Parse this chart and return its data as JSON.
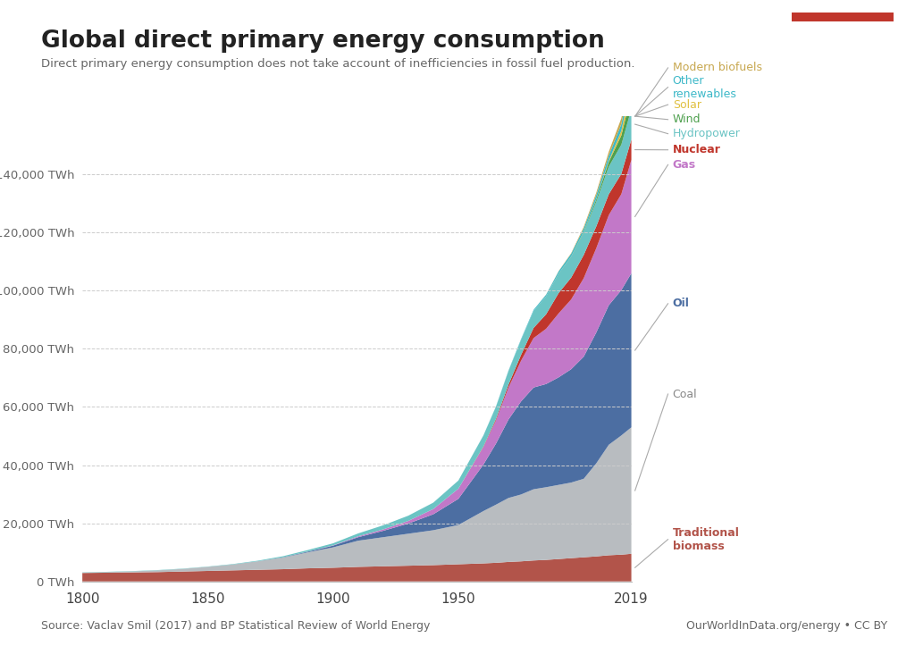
{
  "title": "Global direct primary energy consumption",
  "subtitle": "Direct primary energy consumption does not take account of inefficiencies in fossil fuel production.",
  "source_text": "Source: Vaclav Smil (2017) and BP Statistical Review of World Energy",
  "credit_text": "OurWorldInData.org/energy • CC BY",
  "background_color": "#ffffff",
  "years": [
    1800,
    1810,
    1820,
    1830,
    1840,
    1850,
    1860,
    1870,
    1880,
    1890,
    1900,
    1910,
    1920,
    1930,
    1940,
    1950,
    1960,
    1965,
    1970,
    1975,
    1980,
    1985,
    1990,
    1995,
    2000,
    2005,
    2010,
    2015,
    2019
  ],
  "series": {
    "Traditional biomass": {
      "color": "#b2544a",
      "values": [
        2900,
        3000,
        3100,
        3200,
        3400,
        3600,
        3800,
        4000,
        4200,
        4500,
        4700,
        5000,
        5200,
        5400,
        5600,
        5900,
        6200,
        6400,
        6700,
        6900,
        7200,
        7400,
        7700,
        8000,
        8300,
        8600,
        9000,
        9200,
        9500
      ]
    },
    "Coal": {
      "color": "#b8bcc0",
      "values": [
        100,
        200,
        350,
        600,
        900,
        1400,
        2000,
        2900,
        4000,
        5500,
        7000,
        9000,
        10000,
        11000,
        12000,
        13500,
        18000,
        20000,
        22000,
        23000,
        24500,
        25000,
        25500,
        26000,
        27000,
        32000,
        38000,
        41000,
        43500
      ]
    },
    "Oil": {
      "color": "#4c6ea2",
      "values": [
        0,
        0,
        0,
        0,
        0,
        0,
        10,
        30,
        100,
        250,
        600,
        1200,
        2200,
        3500,
        5500,
        9000,
        16000,
        21000,
        27000,
        32000,
        35000,
        35500,
        37000,
        39000,
        42000,
        45000,
        48000,
        50000,
        53000
      ]
    },
    "Gas": {
      "color": "#c278c8",
      "values": [
        0,
        0,
        0,
        0,
        0,
        0,
        0,
        0,
        0,
        50,
        100,
        300,
        500,
        900,
        1800,
        3500,
        6000,
        8000,
        11000,
        14000,
        17000,
        19000,
        22000,
        24000,
        27000,
        29000,
        31000,
        33000,
        39000
      ]
    },
    "Nuclear": {
      "color": "#c0362c",
      "values": [
        0,
        0,
        0,
        0,
        0,
        0,
        0,
        0,
        0,
        0,
        0,
        0,
        0,
        0,
        0,
        0,
        200,
        500,
        1000,
        2000,
        3500,
        5000,
        7000,
        7500,
        8000,
        7500,
        7200,
        7000,
        7000
      ]
    },
    "Hydropower": {
      "color": "#6bc4c4",
      "values": [
        100,
        100,
        100,
        100,
        100,
        100,
        150,
        200,
        350,
        500,
        700,
        1000,
        1400,
        1800,
        2200,
        2800,
        3800,
        4200,
        4700,
        5200,
        5800,
        6200,
        6700,
        7200,
        7700,
        8500,
        9500,
        10000,
        10500
      ]
    },
    "Wind": {
      "color": "#4ea04e",
      "values": [
        0,
        0,
        0,
        0,
        0,
        0,
        0,
        0,
        0,
        0,
        0,
        0,
        0,
        0,
        0,
        0,
        0,
        0,
        0,
        0,
        0,
        10,
        40,
        100,
        300,
        800,
        1600,
        3200,
        5000
      ]
    },
    "Solar": {
      "color": "#e0c040",
      "values": [
        0,
        0,
        0,
        0,
        0,
        0,
        0,
        0,
        0,
        0,
        0,
        0,
        0,
        0,
        0,
        0,
        0,
        0,
        0,
        0,
        0,
        0,
        5,
        15,
        40,
        100,
        400,
        1600,
        4000
      ]
    },
    "Other renewables": {
      "color": "#3cb8c8",
      "values": [
        0,
        0,
        0,
        0,
        0,
        0,
        0,
        0,
        0,
        0,
        0,
        0,
        0,
        0,
        0,
        0,
        50,
        100,
        150,
        250,
        400,
        500,
        700,
        900,
        1100,
        1400,
        1800,
        2300,
        2900
      ]
    },
    "Modern biofuels": {
      "color": "#c8a850",
      "values": [
        0,
        0,
        0,
        0,
        0,
        0,
        0,
        0,
        0,
        0,
        0,
        0,
        0,
        0,
        0,
        0,
        0,
        0,
        0,
        0,
        0,
        50,
        100,
        200,
        500,
        800,
        1300,
        2000,
        2700
      ]
    }
  },
  "ylim": [
    0,
    160000
  ],
  "yticks": [
    0,
    20000,
    40000,
    60000,
    80000,
    100000,
    120000,
    140000
  ],
  "ytick_labels": [
    "0 TWh",
    "20,000 TWh",
    "40,000 TWh",
    "60,000 TWh",
    "80,000 TWh",
    "100,000 TWh",
    "120,000 TWh",
    "140,000 TWh"
  ],
  "xticks": [
    1800,
    1850,
    1900,
    1950,
    2019
  ],
  "logo_bg": "#1a3a6e",
  "logo_red": "#c0362c",
  "label_names": [
    "Modern biofuels",
    "Other\nrenewables",
    "Solar",
    "Wind",
    "Hydropower",
    "Nuclear",
    "Gas",
    "Oil",
    "Coal",
    "Traditional\nbiomass"
  ],
  "label_colors": [
    "#c8a850",
    "#3cb8c8",
    "#e0c040",
    "#4ea04e",
    "#6bc4c4",
    "#c0362c",
    "#c278c8",
    "#4c6ea2",
    "#888888",
    "#b2544a"
  ],
  "label_bold": [
    false,
    false,
    false,
    false,
    false,
    true,
    true,
    true,
    false,
    true
  ],
  "layer_indices": [
    9,
    8,
    7,
    6,
    5,
    4,
    3,
    2,
    1,
    0
  ]
}
